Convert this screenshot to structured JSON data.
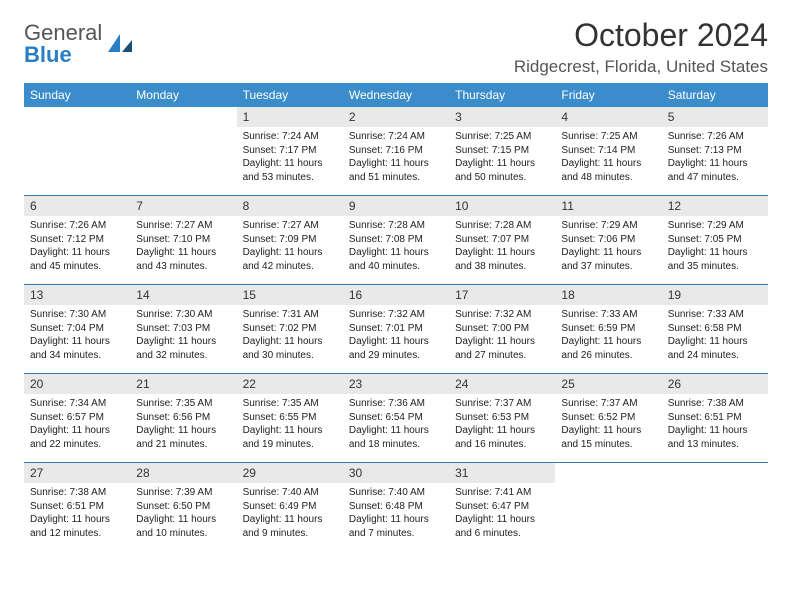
{
  "logo": {
    "general": "General",
    "blue": "Blue"
  },
  "title": "October 2024",
  "location": "Ridgecrest, Florida, United States",
  "colors": {
    "header_bg": "#3a8ccb",
    "header_text": "#ffffff",
    "daynum_bg": "#e9e9e9",
    "row_border": "#3a7aa8",
    "logo_blue": "#2a7ec4",
    "body_text": "#222222",
    "location_text": "#555555"
  },
  "weekdays": [
    "Sunday",
    "Monday",
    "Tuesday",
    "Wednesday",
    "Thursday",
    "Friday",
    "Saturday"
  ],
  "weeks": [
    [
      null,
      null,
      {
        "n": "1",
        "sr": "Sunrise: 7:24 AM",
        "ss": "Sunset: 7:17 PM",
        "dl": "Daylight: 11 hours and 53 minutes."
      },
      {
        "n": "2",
        "sr": "Sunrise: 7:24 AM",
        "ss": "Sunset: 7:16 PM",
        "dl": "Daylight: 11 hours and 51 minutes."
      },
      {
        "n": "3",
        "sr": "Sunrise: 7:25 AM",
        "ss": "Sunset: 7:15 PM",
        "dl": "Daylight: 11 hours and 50 minutes."
      },
      {
        "n": "4",
        "sr": "Sunrise: 7:25 AM",
        "ss": "Sunset: 7:14 PM",
        "dl": "Daylight: 11 hours and 48 minutes."
      },
      {
        "n": "5",
        "sr": "Sunrise: 7:26 AM",
        "ss": "Sunset: 7:13 PM",
        "dl": "Daylight: 11 hours and 47 minutes."
      }
    ],
    [
      {
        "n": "6",
        "sr": "Sunrise: 7:26 AM",
        "ss": "Sunset: 7:12 PM",
        "dl": "Daylight: 11 hours and 45 minutes."
      },
      {
        "n": "7",
        "sr": "Sunrise: 7:27 AM",
        "ss": "Sunset: 7:10 PM",
        "dl": "Daylight: 11 hours and 43 minutes."
      },
      {
        "n": "8",
        "sr": "Sunrise: 7:27 AM",
        "ss": "Sunset: 7:09 PM",
        "dl": "Daylight: 11 hours and 42 minutes."
      },
      {
        "n": "9",
        "sr": "Sunrise: 7:28 AM",
        "ss": "Sunset: 7:08 PM",
        "dl": "Daylight: 11 hours and 40 minutes."
      },
      {
        "n": "10",
        "sr": "Sunrise: 7:28 AM",
        "ss": "Sunset: 7:07 PM",
        "dl": "Daylight: 11 hours and 38 minutes."
      },
      {
        "n": "11",
        "sr": "Sunrise: 7:29 AM",
        "ss": "Sunset: 7:06 PM",
        "dl": "Daylight: 11 hours and 37 minutes."
      },
      {
        "n": "12",
        "sr": "Sunrise: 7:29 AM",
        "ss": "Sunset: 7:05 PM",
        "dl": "Daylight: 11 hours and 35 minutes."
      }
    ],
    [
      {
        "n": "13",
        "sr": "Sunrise: 7:30 AM",
        "ss": "Sunset: 7:04 PM",
        "dl": "Daylight: 11 hours and 34 minutes."
      },
      {
        "n": "14",
        "sr": "Sunrise: 7:30 AM",
        "ss": "Sunset: 7:03 PM",
        "dl": "Daylight: 11 hours and 32 minutes."
      },
      {
        "n": "15",
        "sr": "Sunrise: 7:31 AM",
        "ss": "Sunset: 7:02 PM",
        "dl": "Daylight: 11 hours and 30 minutes."
      },
      {
        "n": "16",
        "sr": "Sunrise: 7:32 AM",
        "ss": "Sunset: 7:01 PM",
        "dl": "Daylight: 11 hours and 29 minutes."
      },
      {
        "n": "17",
        "sr": "Sunrise: 7:32 AM",
        "ss": "Sunset: 7:00 PM",
        "dl": "Daylight: 11 hours and 27 minutes."
      },
      {
        "n": "18",
        "sr": "Sunrise: 7:33 AM",
        "ss": "Sunset: 6:59 PM",
        "dl": "Daylight: 11 hours and 26 minutes."
      },
      {
        "n": "19",
        "sr": "Sunrise: 7:33 AM",
        "ss": "Sunset: 6:58 PM",
        "dl": "Daylight: 11 hours and 24 minutes."
      }
    ],
    [
      {
        "n": "20",
        "sr": "Sunrise: 7:34 AM",
        "ss": "Sunset: 6:57 PM",
        "dl": "Daylight: 11 hours and 22 minutes."
      },
      {
        "n": "21",
        "sr": "Sunrise: 7:35 AM",
        "ss": "Sunset: 6:56 PM",
        "dl": "Daylight: 11 hours and 21 minutes."
      },
      {
        "n": "22",
        "sr": "Sunrise: 7:35 AM",
        "ss": "Sunset: 6:55 PM",
        "dl": "Daylight: 11 hours and 19 minutes."
      },
      {
        "n": "23",
        "sr": "Sunrise: 7:36 AM",
        "ss": "Sunset: 6:54 PM",
        "dl": "Daylight: 11 hours and 18 minutes."
      },
      {
        "n": "24",
        "sr": "Sunrise: 7:37 AM",
        "ss": "Sunset: 6:53 PM",
        "dl": "Daylight: 11 hours and 16 minutes."
      },
      {
        "n": "25",
        "sr": "Sunrise: 7:37 AM",
        "ss": "Sunset: 6:52 PM",
        "dl": "Daylight: 11 hours and 15 minutes."
      },
      {
        "n": "26",
        "sr": "Sunrise: 7:38 AM",
        "ss": "Sunset: 6:51 PM",
        "dl": "Daylight: 11 hours and 13 minutes."
      }
    ],
    [
      {
        "n": "27",
        "sr": "Sunrise: 7:38 AM",
        "ss": "Sunset: 6:51 PM",
        "dl": "Daylight: 11 hours and 12 minutes."
      },
      {
        "n": "28",
        "sr": "Sunrise: 7:39 AM",
        "ss": "Sunset: 6:50 PM",
        "dl": "Daylight: 11 hours and 10 minutes."
      },
      {
        "n": "29",
        "sr": "Sunrise: 7:40 AM",
        "ss": "Sunset: 6:49 PM",
        "dl": "Daylight: 11 hours and 9 minutes."
      },
      {
        "n": "30",
        "sr": "Sunrise: 7:40 AM",
        "ss": "Sunset: 6:48 PM",
        "dl": "Daylight: 11 hours and 7 minutes."
      },
      {
        "n": "31",
        "sr": "Sunrise: 7:41 AM",
        "ss": "Sunset: 6:47 PM",
        "dl": "Daylight: 11 hours and 6 minutes."
      },
      null,
      null
    ]
  ]
}
